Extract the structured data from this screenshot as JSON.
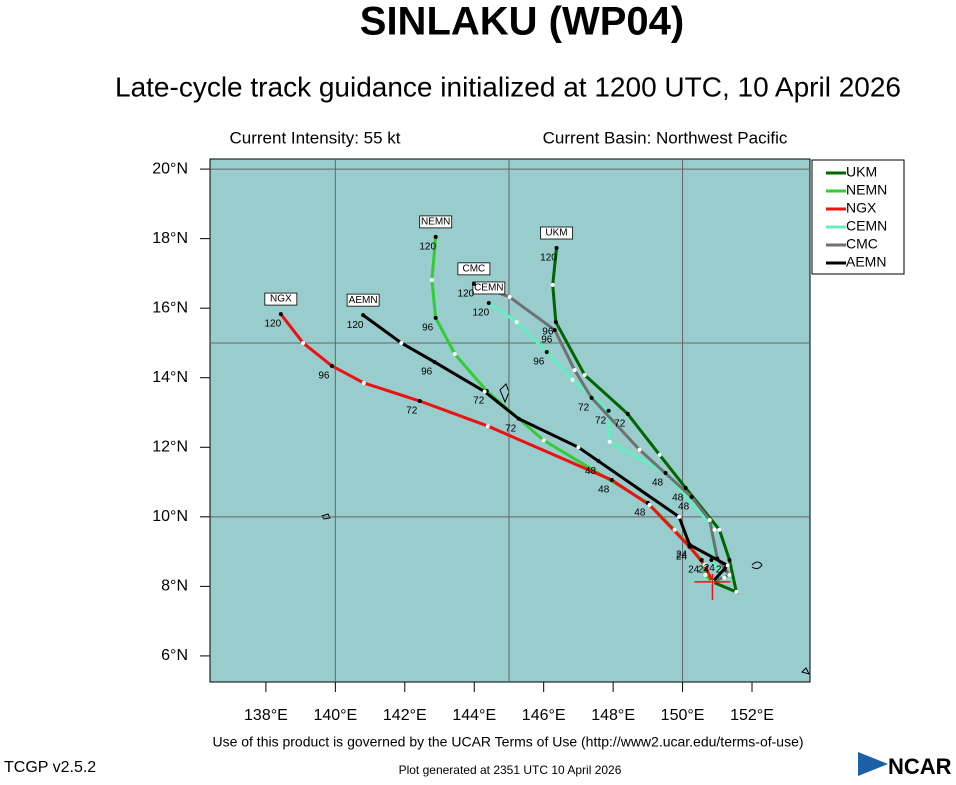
{
  "chart_data": {
    "type": "track",
    "title": "SINLAKU (WP04)",
    "subtitle": "Late-cycle track guidance initialized at 1200 UTC, 10 April 2026",
    "intensity_text": "Current Intensity: 55 kt",
    "basin_text": "Current Basin: Northwest Pacific",
    "background": "#99cccc",
    "xlim": [
      136.39,
      153.67
    ],
    "ylim": [
      5.25,
      20.29
    ],
    "xticks": [
      {
        "value": 138,
        "label": "138°E"
      },
      {
        "value": 140,
        "label": "140°E"
      },
      {
        "value": 142,
        "label": "142°E"
      },
      {
        "value": 144,
        "label": "144°E"
      },
      {
        "value": 146,
        "label": "146°E"
      },
      {
        "value": 148,
        "label": "148°E"
      },
      {
        "value": 150,
        "label": "150°E"
      },
      {
        "value": 152,
        "label": "152°E"
      }
    ],
    "yticks": [
      {
        "value": 6,
        "label": "6°N"
      },
      {
        "value": 8,
        "label": "8°N"
      },
      {
        "value": 10,
        "label": "10°N"
      },
      {
        "value": 12,
        "label": "12°N"
      },
      {
        "value": 14,
        "label": "14°N"
      },
      {
        "value": 16,
        "label": "16°N"
      },
      {
        "value": 18,
        "label": "18°N"
      },
      {
        "value": 20,
        "label": "20°N"
      }
    ],
    "x_grid": [
      140,
      145,
      150
    ],
    "y_grid": [
      10,
      15,
      20
    ],
    "current_position": {
      "x": 150.86,
      "y": 8.13,
      "color": "#ee1111"
    },
    "legend": "outside-right",
    "series": [
      {
        "name": "UKM",
        "color": "#006400",
        "x": [
          150.86,
          151.55,
          151.35,
          151.06,
          150.09,
          149.34,
          148.42,
          147.18,
          146.35,
          146.26,
          146.37
        ],
        "y": [
          8.13,
          7.84,
          8.76,
          9.63,
          10.83,
          11.78,
          12.96,
          14.08,
          15.6,
          16.67,
          17.73
        ],
        "hour_labels": [
          null,
          null,
          24,
          null,
          48,
          null,
          72,
          null,
          96,
          null,
          120
        ]
      },
      {
        "name": "NEMN",
        "color": "#33cc33",
        "x": [
          150.86,
          150.66,
          150.55,
          149.77,
          149.0,
          146.0,
          144.36,
          143.44,
          142.89,
          142.78,
          142.89
        ],
        "y": [
          8.13,
          8.33,
          8.76,
          9.63,
          10.4,
          12.2,
          13.62,
          14.68,
          15.72,
          16.81,
          18.05
        ],
        "hour_labels": [
          null,
          null,
          24,
          null,
          48,
          null,
          72,
          null,
          96,
          null,
          120
        ]
      },
      {
        "name": "NGX",
        "color": "#ee1111",
        "x": [
          150.86,
          150.63,
          150.2,
          149.05,
          147.96,
          144.39,
          142.43,
          140.82,
          139.9,
          139.07,
          138.43
        ],
        "y": [
          8.13,
          8.62,
          9.14,
          10.34,
          11.06,
          12.61,
          13.33,
          13.85,
          14.34,
          15.0,
          15.83
        ],
        "hour_labels": [
          null,
          null,
          24,
          null,
          48,
          null,
          72,
          null,
          96,
          null,
          120
        ]
      },
      {
        "name": "CEMN",
        "color": "#66eec0",
        "x": [
          150.86,
          151.2,
          150.83,
          150.92,
          149.51,
          147.9,
          147.87,
          146.83,
          146.09,
          145.22,
          144.42
        ],
        "y": [
          8.13,
          8.25,
          8.76,
          9.63,
          11.26,
          12.16,
          13.05,
          13.94,
          14.74,
          15.6,
          16.15
        ],
        "hour_labels": [
          null,
          null,
          24,
          null,
          48,
          null,
          72,
          null,
          96,
          null,
          120
        ]
      },
      {
        "name": "CMC",
        "color": "#707070",
        "x": [
          150.86,
          151.35,
          151.0,
          150.78,
          150.26,
          148.76,
          147.38,
          146.89,
          146.32,
          145.02,
          143.99
        ],
        "y": [
          8.13,
          8.33,
          8.8,
          9.91,
          10.57,
          11.93,
          13.42,
          14.22,
          15.37,
          16.32,
          16.7
        ],
        "hour_labels": [
          null,
          null,
          24,
          null,
          48,
          null,
          72,
          null,
          96,
          null,
          120
        ]
      },
      {
        "name": "AEMN",
        "color": "#000000",
        "x": [
          150.86,
          151.3,
          150.2,
          149.9,
          147.58,
          147.0,
          145.28,
          144.3,
          142.86,
          141.9,
          140.8
        ],
        "y": [
          8.13,
          8.6,
          9.2,
          10.0,
          11.6,
          12.0,
          12.82,
          13.6,
          14.45,
          15.0,
          15.8
        ],
        "hour_labels": [
          null,
          null,
          24,
          null,
          48,
          null,
          72,
          null,
          96,
          null,
          120
        ]
      }
    ]
  },
  "footer": {
    "terms": "Use of this product is governed by the UCAR Terms of Use (http://www2.ucar.edu/terms-of-use)",
    "version": "TCGP v2.5.2",
    "generated": "Plot generated at 2351 UTC   10 April 2026",
    "logo": "NCAR"
  }
}
